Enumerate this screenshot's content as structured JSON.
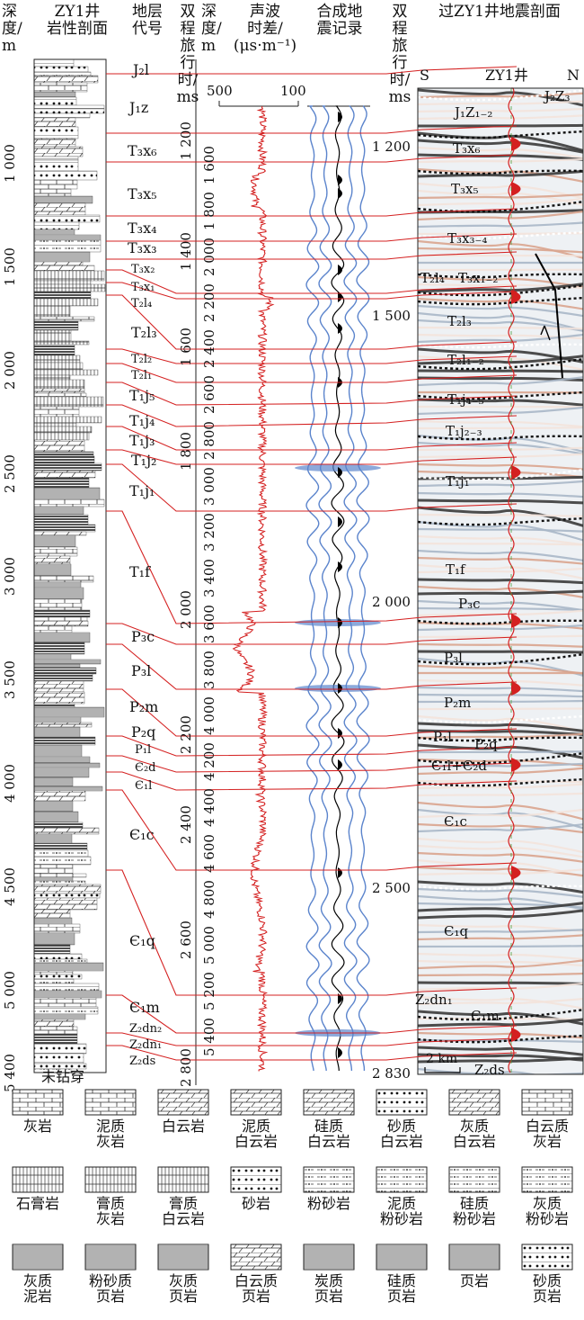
{
  "headers": {
    "depth": "深\n度/\nm",
    "litho_profile": "ZY1井\n岩性剖面",
    "strata_code": "地层\n代号",
    "twt_left": "双\n程\n旅\n行\n时/\nms",
    "depth2": "深度/\nm",
    "sonic": "声波\n时差/\n(μs·m⁻¹)",
    "synthetic": "合成地\n震记录",
    "twt_right": "双\n程\n旅\n行\n时/\nms",
    "seismic": "过ZY1井地震剖面"
  },
  "sonic_axis": {
    "left": "500",
    "right": "100"
  },
  "depth_ticks_left": [
    {
      "label": "1 000",
      "depth": 1000
    },
    {
      "label": "1 500",
      "depth": 1500
    },
    {
      "label": "2 000",
      "depth": 2000
    },
    {
      "label": "2 500",
      "depth": 2500
    },
    {
      "label": "3 000",
      "depth": 3000
    },
    {
      "label": "3 500",
      "depth": 3500
    },
    {
      "label": "4 000",
      "depth": 4000
    },
    {
      "label": "4 500",
      "depth": 4500
    },
    {
      "label": "5 000",
      "depth": 5000
    },
    {
      "label": "5 400",
      "depth": 5400
    }
  ],
  "twt_ticks_left": [
    {
      "label": "1 200",
      "t": 1200
    },
    {
      "label": "1 400",
      "t": 1400
    },
    {
      "label": "1 600",
      "t": 1600
    },
    {
      "label": "1 800",
      "t": 1800
    },
    {
      "label": "2 000",
      "t": 2000
    },
    {
      "label": "2 200",
      "t": 2200
    },
    {
      "label": "2 400",
      "t": 2400
    },
    {
      "label": "2 600",
      "t": 2600
    },
    {
      "label": "2 800",
      "t": 2800
    }
  ],
  "depth2_ticks": [
    "1 600",
    "1 800",
    "2 000",
    "2 200",
    "2 400",
    "2 600",
    "2 800",
    "3 000",
    "3 200",
    "3 400",
    "3 600",
    "3 800",
    "4 000",
    "4 200",
    "4 400",
    "4 600",
    "4 800",
    "5 000",
    "5 200",
    "5 400"
  ],
  "twt_ticks_right": [
    {
      "label": "1 200",
      "t": 1200
    },
    {
      "label": "1 500",
      "t": 1500
    },
    {
      "label": "2 000",
      "t": 2000
    },
    {
      "label": "2 500",
      "t": 2500
    },
    {
      "label": "2 830",
      "t": 2830
    }
  ],
  "strata": [
    {
      "code": "J₂l"
    },
    {
      "code": "J₁z"
    },
    {
      "code": "T₃x₆"
    },
    {
      "code": "T₃x₅"
    },
    {
      "code": "T₃x₄"
    },
    {
      "code": "T₃x₃"
    },
    {
      "code": "T₃x₂"
    },
    {
      "code": "T₃x₁"
    },
    {
      "code": "T₂l₄"
    },
    {
      "code": "T₂l₃"
    },
    {
      "code": "T₂l₂"
    },
    {
      "code": "T₂l₁"
    },
    {
      "code": "T₁j₅"
    },
    {
      "code": "T₁j₄"
    },
    {
      "code": "T₁j₃"
    },
    {
      "code": "T₁j₂"
    },
    {
      "code": "T₁j₁"
    },
    {
      "code": "T₁f"
    },
    {
      "code": "P₃c"
    },
    {
      "code": "P₃l"
    },
    {
      "code": "P₂m"
    },
    {
      "code": "P₂q"
    },
    {
      "code": "P₁l"
    },
    {
      "code": "Є₂d"
    },
    {
      "code": "Є₁l"
    },
    {
      "code": "Є₁c"
    },
    {
      "code": "Є₁q"
    },
    {
      "code": "Є₁m"
    },
    {
      "code": "Z₂dn₂"
    },
    {
      "code": "Z₂dn₁"
    },
    {
      "code": "Z₂ds"
    }
  ],
  "not_penetrated": "未钻穿",
  "seismic_labels": {
    "south": "S",
    "north": "N",
    "well": "ZY1井",
    "scale": "2 km",
    "units": [
      "J₂Z₃",
      "J₁Z₁₋₂",
      "T₃x₆",
      "T₃x₅",
      "T₃x₃₋₄",
      "T₂l₄",
      "T₃x₁₋₂",
      "T₂l₃",
      "T₂l₁₋₂",
      "T₁j₄₋₅",
      "T₁j₂₋₃",
      "T₁j₁",
      "T₁f",
      "P₃c",
      "P₃l",
      "P₂m",
      "P₁l",
      "P₂q",
      "Є₁l+Є₂d",
      "Є₁c",
      "Є₁q",
      "Z₂dn₁",
      "Є₁m",
      "Z₂ds"
    ]
  },
  "legend": [
    {
      "label": "灰岩",
      "icon": "limestone-pattern"
    },
    {
      "label": "泥质\n灰岩",
      "icon": "argillaceous-limestone-pattern"
    },
    {
      "label": "白云岩",
      "icon": "dolomite-pattern"
    },
    {
      "label": "泥质\n白云岩",
      "icon": "argillaceous-dolomite-pattern"
    },
    {
      "label": "硅质\n白云岩",
      "icon": "siliceous-dolomite-pattern"
    },
    {
      "label": "砂质\n白云岩",
      "icon": "sandy-dolomite-pattern"
    },
    {
      "label": "灰质\n白云岩",
      "icon": "calcareous-dolomite-pattern"
    },
    {
      "label": "白云质\n灰岩",
      "icon": "dolomitic-limestone-pattern"
    },
    {
      "label": "石膏岩",
      "icon": "gypsum-pattern"
    },
    {
      "label": "膏质\n灰岩",
      "icon": "gypsiferous-limestone-pattern"
    },
    {
      "label": "膏质\n白云岩",
      "icon": "gypsiferous-dolomite-pattern"
    },
    {
      "label": "砂岩",
      "icon": "sandstone-pattern"
    },
    {
      "label": "粉砂岩",
      "icon": "siltstone-pattern"
    },
    {
      "label": "泥质\n粉砂岩",
      "icon": "argillaceous-siltstone-pattern"
    },
    {
      "label": "硅质\n粉砂岩",
      "icon": "siliceous-siltstone-pattern"
    },
    {
      "label": "灰质\n粉砂岩",
      "icon": "calcareous-siltstone-pattern"
    },
    {
      "label": "灰质\n泥岩",
      "icon": "calcareous-mudstone-pattern"
    },
    {
      "label": "粉砂质\n页岩",
      "icon": "silty-shale-pattern"
    },
    {
      "label": "灰质\n页岩",
      "icon": "calcareous-shale-pattern"
    },
    {
      "label": "白云质\n页岩",
      "icon": "dolomitic-shale-pattern"
    },
    {
      "label": "炭质\n页岩",
      "icon": "carbonaceous-shale-pattern"
    },
    {
      "label": "硅质\n页岩",
      "icon": "siliceous-shale-pattern"
    },
    {
      "label": "页岩",
      "icon": "shale-pattern"
    },
    {
      "label": "砂质\n页岩",
      "icon": "sandy-shale-pattern"
    }
  ],
  "colors": {
    "boundary": "#d42020",
    "seismic_trough": "#5b84cc",
    "seismic_peak": "#000000",
    "well_trace": "#d42020"
  }
}
